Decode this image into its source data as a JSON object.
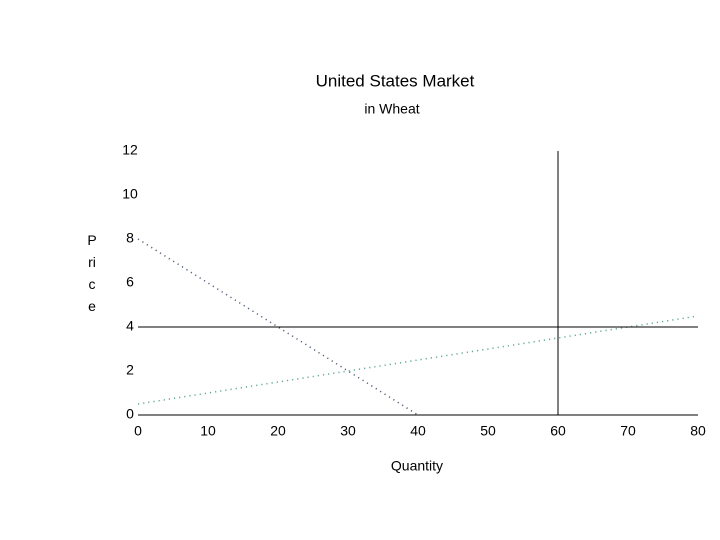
{
  "chart_data": {
    "type": "line",
    "title": "United States Market",
    "subtitle": "in Wheat",
    "x_label": "Quantity",
    "y_label": "Price",
    "xlim": [
      0,
      80
    ],
    "xticks": [
      0,
      10,
      20,
      30,
      40,
      50,
      60,
      70,
      80
    ],
    "ylim": [
      0,
      12
    ],
    "yticks": [
      0,
      2,
      4,
      6,
      8,
      10,
      12
    ],
    "series": [
      {
        "x": [
          0,
          40
        ],
        "values": [
          8,
          0
        ],
        "color": "#55607a",
        "dashed": true
      },
      {
        "x": [
          0,
          80
        ],
        "values": [
          0.5,
          4.5
        ],
        "color": "#5fa898",
        "dashed": true
      },
      {
        "x": [
          0,
          80
        ],
        "values": [
          4,
          4
        ],
        "color": "#000000",
        "dashed": false
      },
      {
        "x": [
          60,
          60
        ],
        "values": [
          0,
          12
        ],
        "color": "#000000",
        "dashed": false
      }
    ]
  }
}
